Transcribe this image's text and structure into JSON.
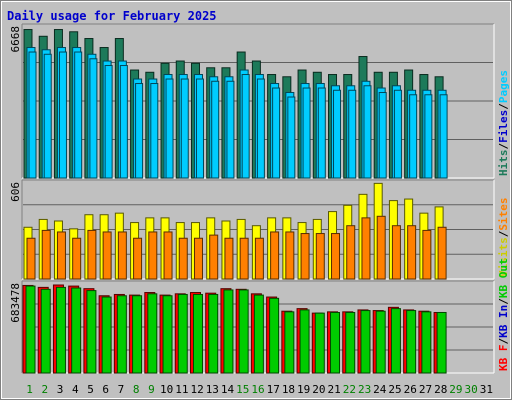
{
  "title": "Daily usage for February 2025",
  "colors": {
    "background": "#c0c0c0",
    "plot_bg": "#c0c0c0",
    "title": "#0000cc",
    "gridline": "#555555",
    "hits": "#1d7a5a",
    "files": "#00ccff",
    "pages": "#00ccff",
    "visits": "#ffff00",
    "sites": "#ff8000",
    "kbin": "#00cc00",
    "kbf": "#ff0000",
    "kbout": "#00cc00"
  },
  "chart_data": [
    {
      "type": "bar",
      "name": "hits-files-pages",
      "title": "Daily usage for February 2025",
      "max_label": "6668",
      "ylim": [
        0,
        6668
      ],
      "categories": [
        "1",
        "2",
        "3",
        "4",
        "5",
        "6",
        "7",
        "8",
        "9",
        "10",
        "11",
        "12",
        "13",
        "14",
        "15",
        "16",
        "17",
        "18",
        "19",
        "20",
        "21",
        "22",
        "23",
        "24",
        "25",
        "26",
        "27",
        "28",
        "29",
        "30",
        "31"
      ],
      "legend": [
        {
          "text": "Hits",
          "color": "#1d7a5a"
        },
        {
          "text": "/",
          "color": "#000000"
        },
        {
          "text": "Files",
          "color": "#0000cc"
        },
        {
          "text": "/",
          "color": "#000000"
        },
        {
          "text": "Pages",
          "color": "#00ccff"
        }
      ],
      "series": [
        {
          "name": "Hits",
          "values": [
            6600,
            6300,
            6600,
            6500,
            6200,
            5800,
            6200,
            4800,
            4700,
            5100,
            5200,
            5100,
            4900,
            4900,
            5600,
            5200,
            4600,
            4500,
            4800,
            4700,
            4600,
            4600,
            5400,
            4700,
            4700,
            4800,
            4600,
            4500,
            null,
            null,
            null
          ]
        },
        {
          "name": "Files",
          "values": [
            5800,
            5700,
            5800,
            5800,
            5500,
            5200,
            5200,
            4400,
            4400,
            4600,
            4600,
            4600,
            4500,
            4500,
            4800,
            4600,
            4200,
            3800,
            4200,
            4200,
            4100,
            4100,
            4300,
            4000,
            4100,
            3900,
            3900,
            3900,
            null,
            null,
            null
          ]
        },
        {
          "name": "Pages",
          "values": [
            5600,
            5500,
            5600,
            5600,
            5300,
            5000,
            5000,
            4200,
            4200,
            4400,
            4400,
            4400,
            4300,
            4300,
            4600,
            4400,
            4000,
            3600,
            4000,
            4000,
            3900,
            3900,
            4100,
            3800,
            3900,
            3700,
            3700,
            3700,
            null,
            null,
            null
          ]
        }
      ]
    },
    {
      "type": "bar",
      "name": "visits-sites",
      "max_label": "606",
      "ylim": [
        0,
        606
      ],
      "categories": [
        "1",
        "2",
        "3",
        "4",
        "5",
        "6",
        "7",
        "8",
        "9",
        "10",
        "11",
        "12",
        "13",
        "14",
        "15",
        "16",
        "17",
        "18",
        "19",
        "20",
        "21",
        "22",
        "23",
        "24",
        "25",
        "26",
        "27",
        "28",
        "29",
        "30",
        "31"
      ],
      "legend": [
        {
          "text": "Visits",
          "color": "#cccc00"
        },
        {
          "text": "/",
          "color": "#000000"
        },
        {
          "text": "Sites",
          "color": "#ff8000"
        }
      ],
      "series": [
        {
          "name": "Visits",
          "values": [
            330,
            380,
            370,
            320,
            410,
            410,
            420,
            360,
            390,
            390,
            360,
            360,
            390,
            370,
            380,
            340,
            390,
            390,
            360,
            380,
            430,
            470,
            540,
            610,
            500,
            510,
            420,
            460,
            null,
            null,
            null
          ]
        },
        {
          "name": "Sites",
          "values": [
            260,
            310,
            300,
            260,
            310,
            300,
            300,
            260,
            300,
            300,
            260,
            260,
            280,
            260,
            260,
            260,
            300,
            300,
            290,
            290,
            290,
            340,
            390,
            400,
            340,
            340,
            310,
            330,
            null,
            null,
            null
          ]
        }
      ]
    },
    {
      "type": "bar",
      "name": "kb-in-out",
      "max_label": "683478",
      "ylim": [
        0,
        683478
      ],
      "categories": [
        "1",
        "2",
        "3",
        "4",
        "5",
        "6",
        "7",
        "8",
        "9",
        "10",
        "11",
        "12",
        "13",
        "14",
        "15",
        "16",
        "17",
        "18",
        "19",
        "20",
        "21",
        "22",
        "23",
        "24",
        "25",
        "26",
        "27",
        "28",
        "29",
        "30",
        "31"
      ],
      "legend": [
        {
          "text": "KB F",
          "color": "#ff0000"
        },
        {
          "text": "/",
          "color": "#000000"
        },
        {
          "text": "KB In",
          "color": "#0000cc"
        },
        {
          "text": "/",
          "color": "#000000"
        },
        {
          "text": "KB Out",
          "color": "#00cc00"
        }
      ],
      "series": [
        {
          "name": "KB F",
          "values": [
            680000,
            665000,
            683478,
            675000,
            655000,
            600000,
            610000,
            605000,
            625000,
            605000,
            615000,
            625000,
            620000,
            655000,
            650000,
            615000,
            590000,
            480000,
            500000,
            465000,
            475000,
            475000,
            490000,
            485000,
            510000,
            490000,
            480000,
            470000,
            null,
            null,
            null
          ]
        },
        {
          "name": "KB Out",
          "values": [
            675000,
            650000,
            665000,
            660000,
            640000,
            590000,
            600000,
            600000,
            615000,
            600000,
            610000,
            610000,
            610000,
            645000,
            645000,
            605000,
            580000,
            475000,
            490000,
            465000,
            470000,
            470000,
            485000,
            480000,
            500000,
            485000,
            475000,
            470000,
            null,
            null,
            null
          ]
        }
      ]
    }
  ],
  "x_label_colors": {
    "weekday": "#000000",
    "weekend": "#008000"
  },
  "weekend_days": [
    "1",
    "2",
    "8",
    "9",
    "15",
    "16",
    "22",
    "23",
    "29",
    "30"
  ]
}
